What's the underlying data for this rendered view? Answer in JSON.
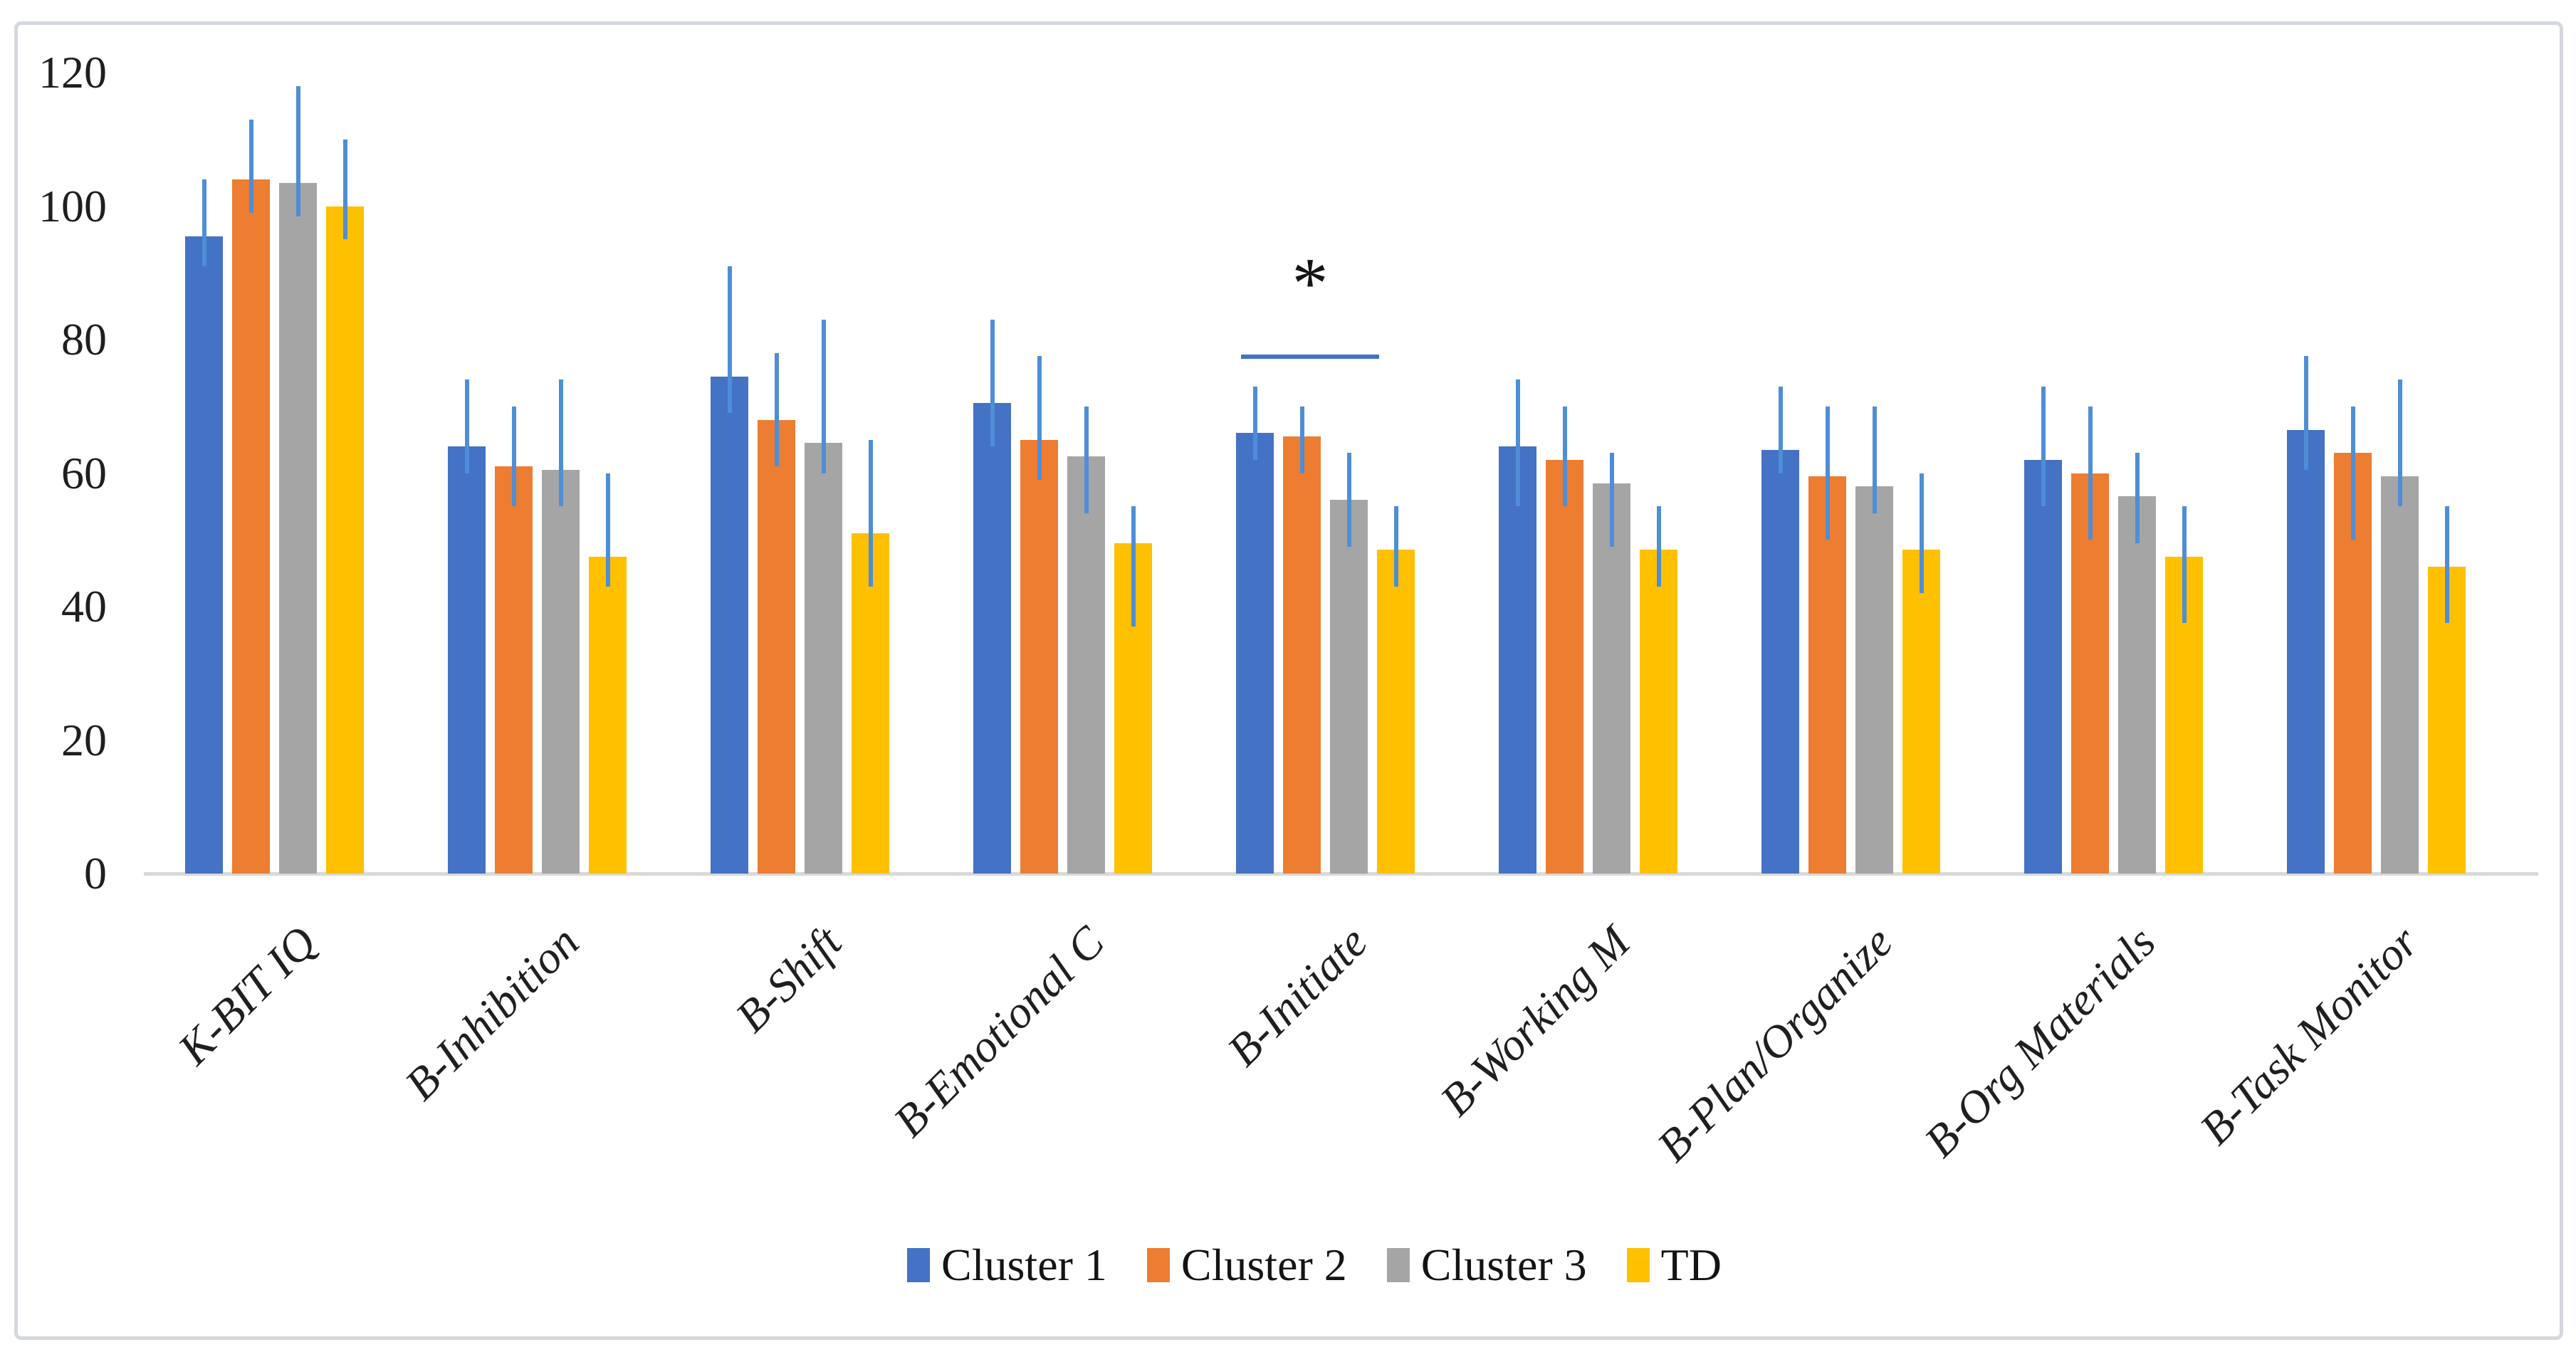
{
  "figure": {
    "background_color": "#ffffff",
    "border_color": "#d4d8de"
  },
  "axis": {
    "line_color": "#d9d9d9",
    "text_color": "#1f1f1f"
  },
  "chart_data": {
    "type": "bar",
    "title": "",
    "xlabel": "",
    "ylabel": "",
    "ylim": [
      0,
      120
    ],
    "yticks": [
      0,
      20,
      40,
      60,
      80,
      100,
      120
    ],
    "grid": false,
    "legend_position": "bottom",
    "categories": [
      "K-BIT IQ",
      "B-Inhibition",
      "B-Shift",
      "B-Emotional C",
      "B-Initiate",
      "B-Working M",
      "B-Plan/Organize",
      "B-Org Materials",
      "B-Task Monitor"
    ],
    "series": [
      {
        "name": "Cluster 1",
        "color": "#4472C4",
        "values": [
          95.5,
          64,
          74.5,
          70.5,
          66,
          64,
          63.5,
          62,
          66.5
        ],
        "error_low": [
          91,
          60,
          69,
          64,
          62,
          55,
          60,
          55,
          60.5
        ],
        "error_high": [
          104,
          74,
          91,
          83,
          73,
          74,
          73,
          73,
          77.5
        ]
      },
      {
        "name": "Cluster 2",
        "color": "#ED7D31",
        "values": [
          104,
          61,
          68,
          65,
          65.5,
          62,
          59.5,
          60,
          63
        ],
        "error_low": [
          99,
          55,
          61,
          59,
          60,
          55,
          50,
          50,
          50
        ],
        "error_high": [
          113,
          70,
          78,
          77.5,
          70,
          70,
          70,
          70,
          70
        ]
      },
      {
        "name": "Cluster 3",
        "color": "#A5A5A5",
        "values": [
          103.5,
          60.5,
          64.5,
          62.5,
          56,
          58.5,
          58,
          56.5,
          59.5
        ],
        "error_low": [
          98.5,
          55,
          60,
          54,
          49,
          49,
          54,
          49.5,
          55
        ],
        "error_high": [
          118,
          74,
          83,
          70,
          63,
          63,
          70,
          63,
          74
        ]
      },
      {
        "name": "TD",
        "color": "#FFC000",
        "values": [
          100,
          47.5,
          51,
          49.5,
          48.5,
          48.5,
          48.5,
          47.5,
          46
        ],
        "error_low": [
          95,
          43,
          43,
          37,
          43,
          43,
          42,
          37.5,
          37.5
        ],
        "error_high": [
          110,
          60,
          65,
          55,
          55,
          55,
          60,
          55,
          55
        ]
      }
    ],
    "error_bar_color": "#4E8ED6",
    "annotation": {
      "text": "*",
      "category": "B-Initiate",
      "line_value": 77.8,
      "line_color": "#4472C4"
    }
  },
  "legend": {
    "items": [
      "Cluster 1",
      "Cluster 2",
      "Cluster 3",
      "TD"
    ]
  }
}
